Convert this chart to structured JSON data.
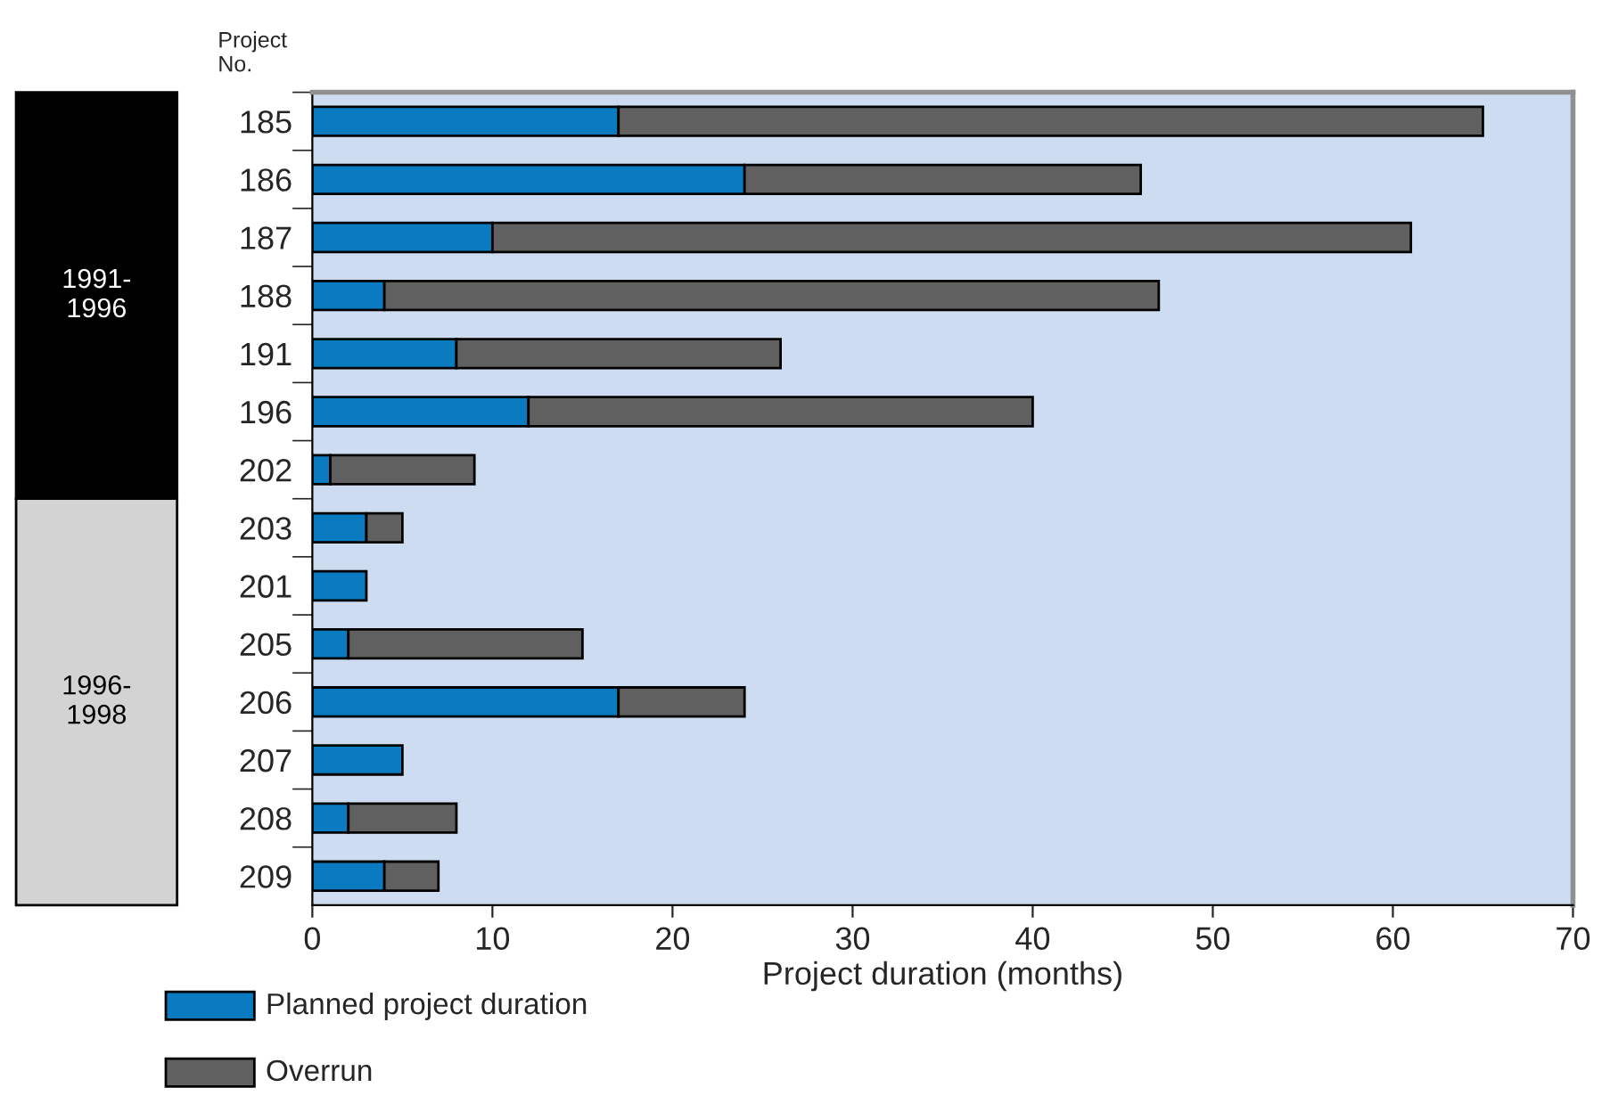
{
  "chart_data": {
    "type": "bar",
    "orientation": "horizontal",
    "stacked": true,
    "xlabel": "Project duration (months)",
    "ylabel": "Project\nNo.",
    "categories": [
      "185",
      "186",
      "187",
      "188",
      "191",
      "196",
      "202",
      "203",
      "201",
      "205",
      "206",
      "207",
      "208",
      "209"
    ],
    "series": [
      {
        "name": "Planned project duration",
        "color": "#0a7bc0",
        "values": [
          17,
          24,
          10,
          4,
          8,
          12,
          1,
          3,
          3,
          2,
          17,
          5,
          2,
          4
        ]
      },
      {
        "name": "Overrun",
        "color": "#606060",
        "values": [
          48,
          22,
          51,
          43,
          18,
          28,
          8,
          2,
          null,
          13,
          7,
          null,
          6,
          3
        ]
      }
    ],
    "xlim": [
      0,
      70
    ],
    "xticks": [
      0,
      10,
      20,
      30,
      40,
      50,
      60,
      70
    ],
    "annotations": [
      "1991-\n1996",
      "1996-\n1998"
    ],
    "grid": false,
    "legend": "bottom"
  }
}
